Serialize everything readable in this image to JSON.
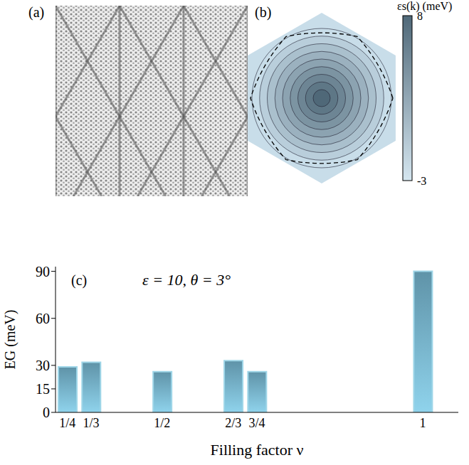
{
  "panels": [
    {
      "label": "(a)"
    },
    {
      "label": "(b)",
      "colorbar": {
        "label": "εs(k) (meV)",
        "range": [
          -3,
          8
        ],
        "ticks": [
          8,
          -3
        ]
      }
    }
  ],
  "chart_data": {
    "type": "bar",
    "panel_label": "(c)",
    "annotation": "ε = 10, θ = 3°",
    "x_label": "Filling factor ν",
    "y_label": "EG (meV)",
    "categories": [
      "1/4",
      "1/3",
      null,
      null,
      "1/2",
      null,
      null,
      "2/3",
      "3/4",
      null,
      null,
      null,
      null,
      null,
      null,
      "1",
      null
    ],
    "values": [
      29,
      32,
      null,
      null,
      26,
      null,
      null,
      33,
      26,
      null,
      null,
      null,
      null,
      null,
      null,
      90,
      null
    ],
    "color": "#5f93a8",
    "ylim": [
      0,
      93
    ],
    "yticks": [
      0,
      15,
      30,
      60,
      90
    ],
    "grid": false
  }
}
